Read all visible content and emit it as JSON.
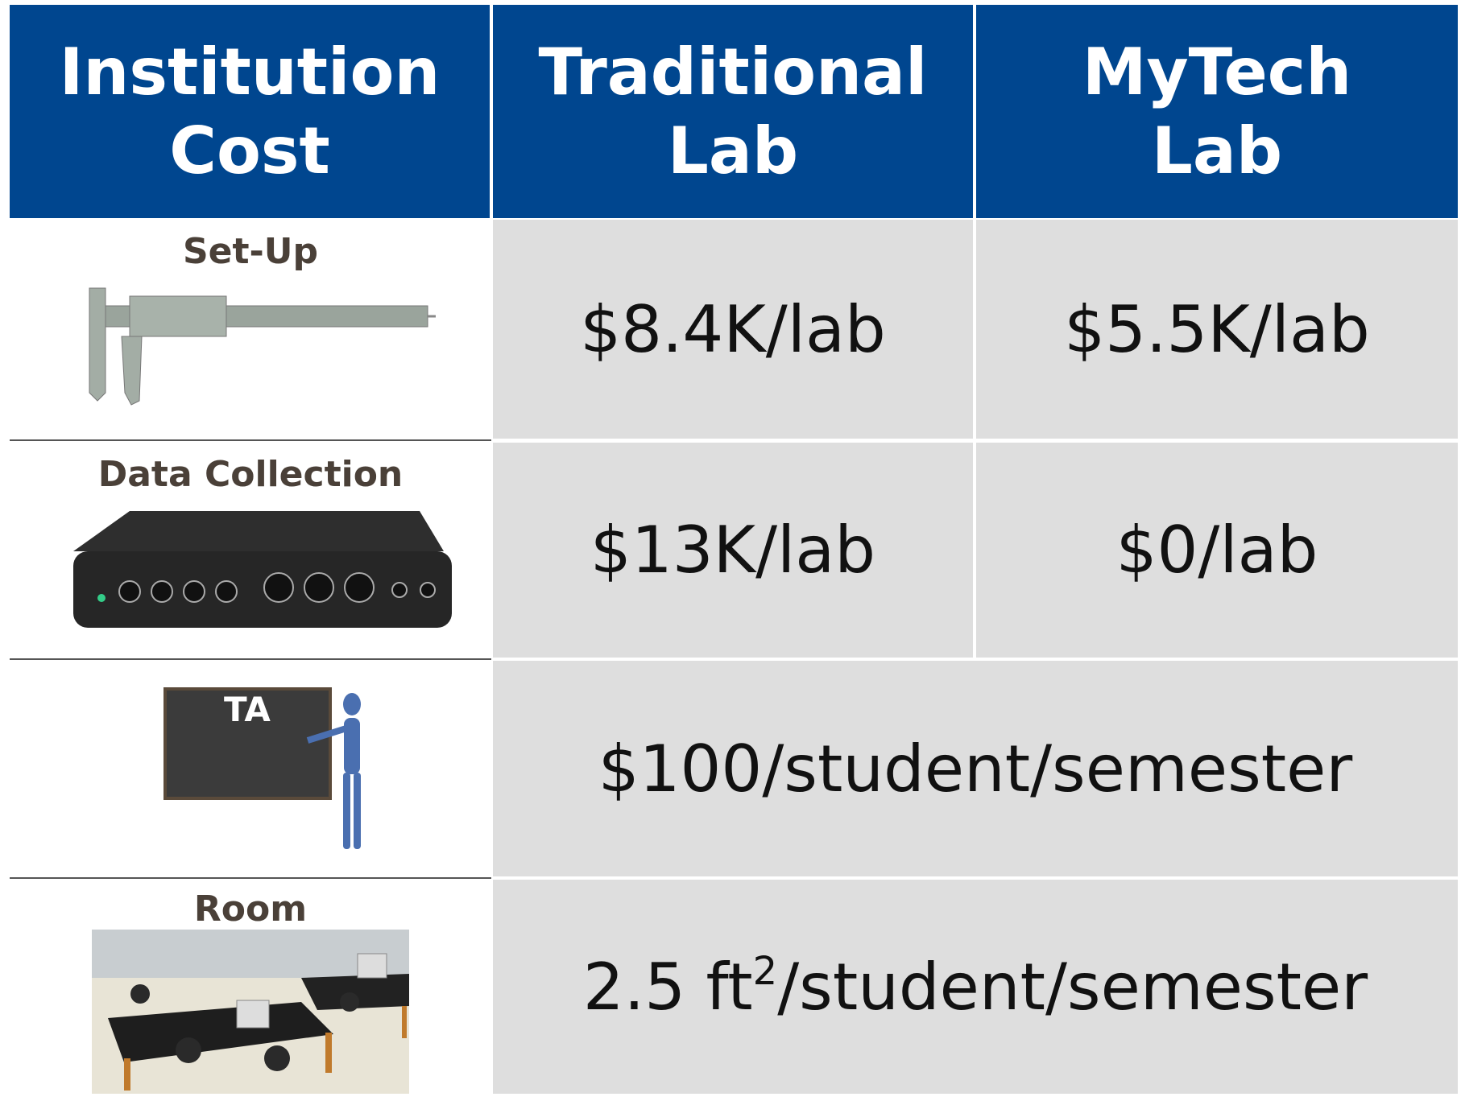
{
  "table": {
    "header": [
      [
        "Institution",
        "Cost"
      ],
      [
        "Traditional",
        "Lab"
      ],
      [
        "MyTech",
        "Lab"
      ]
    ],
    "rows": [
      {
        "label": "Set-Up",
        "traditional": "$8.4K/lab",
        "mytech": "$5.5K/lab"
      },
      {
        "label": "Data Collection",
        "traditional": "$13K/lab",
        "mytech": "$0/lab"
      },
      {
        "label": "TA",
        "shared": "$100/student/semester"
      },
      {
        "label": "Room",
        "shared": {
          "before": "2.5 ft",
          "superscript": "2",
          "after": "/student/semester"
        }
      }
    ]
  }
}
